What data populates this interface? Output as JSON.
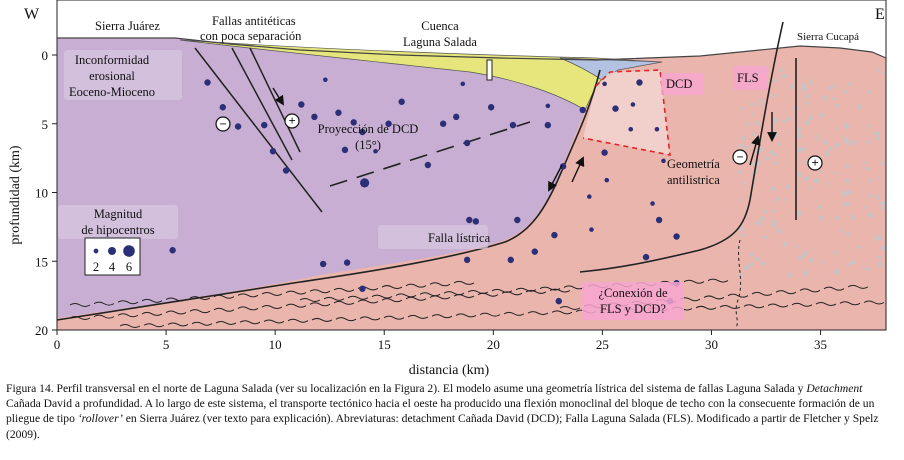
{
  "figure": {
    "compass_west": "W",
    "compass_east": "E",
    "labels": {
      "sierra_juarez": "Sierra Juárez",
      "fallas_line1": "Fallas antitéticas",
      "fallas_line2": "con poca separación",
      "cuenca_line1": "Cuenca",
      "cuenca_line2": "Laguna Salada",
      "sierra_cucapa": "Sierra Cucapá",
      "inconf_line1": "Inconformidad",
      "inconf_line2": "erosional",
      "inconf_line3": "Eoceno-Mioceno",
      "proyeccion_line1": "Proyección de DCD",
      "proyeccion_line2": "(15°)",
      "dcd": "DCD",
      "fls": "FLS",
      "geometria_line1": "Geometría",
      "geometria_line2": "antilistrica",
      "falla_listrica": "Falla lístrica",
      "magnitud_line1": "Magnitud",
      "magnitud_line2": "de hipocentros",
      "mag_2": "2",
      "mag_4": "4",
      "mag_6": "6",
      "conexion_line1": "¿Conexión de",
      "conexion_line2": "FLS y DCD?",
      "motion_minus": "−",
      "motion_plus": "+"
    },
    "axes": {
      "x_title": "distancia (km)",
      "y_title": "profundidad (km)",
      "x_ticks": [
        "0",
        "5",
        "10",
        "15",
        "20",
        "25",
        "30",
        "35"
      ],
      "y_ticks": [
        "0",
        "5",
        "10",
        "15",
        "20"
      ],
      "x_range_km": [
        0,
        38
      ],
      "y_range_km": [
        -4,
        20
      ]
    },
    "colors": {
      "hanging_wall": "#c8aed2",
      "footwall": "#eab5ad",
      "basin_fill": "#e6e67c",
      "basin_inner": "#b2c2e0",
      "earthquakes": "#2b2f78",
      "dcd_dashes": "#e3242b",
      "label_highlight": "#f7a6cf"
    },
    "hypocenters": [
      {
        "x": 6.9,
        "y": 2.0,
        "m": 4
      },
      {
        "x": 7.6,
        "y": 3.8,
        "m": 4
      },
      {
        "x": 8.3,
        "y": 5.2,
        "m": 4
      },
      {
        "x": 9.5,
        "y": 5.1,
        "m": 4
      },
      {
        "x": 9.9,
        "y": 7.0,
        "m": 4
      },
      {
        "x": 10.5,
        "y": 8.4,
        "m": 4
      },
      {
        "x": 11.2,
        "y": 3.6,
        "m": 4
      },
      {
        "x": 11.8,
        "y": 4.5,
        "m": 4
      },
      {
        "x": 12.3,
        "y": 1.8,
        "m": 2
      },
      {
        "x": 12.9,
        "y": 4.2,
        "m": 4
      },
      {
        "x": 13.6,
        "y": 4.9,
        "m": 4
      },
      {
        "x": 13.2,
        "y": 6.9,
        "m": 4
      },
      {
        "x": 14.0,
        "y": 5.6,
        "m": 4
      },
      {
        "x": 14.1,
        "y": 9.3,
        "m": 6
      },
      {
        "x": 14.6,
        "y": 7.0,
        "m": 2
      },
      {
        "x": 15.2,
        "y": 5.0,
        "m": 4
      },
      {
        "x": 15.8,
        "y": 3.4,
        "m": 4
      },
      {
        "x": 17.0,
        "y": 8.0,
        "m": 4
      },
      {
        "x": 17.7,
        "y": 5.0,
        "m": 4
      },
      {
        "x": 18.3,
        "y": 4.5,
        "m": 4
      },
      {
        "x": 18.6,
        "y": 2.1,
        "m": 2
      },
      {
        "x": 18.8,
        "y": 6.4,
        "m": 4
      },
      {
        "x": 18.9,
        "y": 12.0,
        "m": 4
      },
      {
        "x": 19.2,
        "y": 12.1,
        "m": 4
      },
      {
        "x": 18.8,
        "y": 14.9,
        "m": 4
      },
      {
        "x": 19.9,
        "y": 3.8,
        "m": 4
      },
      {
        "x": 20.9,
        "y": 5.1,
        "m": 4
      },
      {
        "x": 20.8,
        "y": 14.9,
        "m": 4
      },
      {
        "x": 21.1,
        "y": 12.0,
        "m": 4
      },
      {
        "x": 21.9,
        "y": 14.3,
        "m": 4
      },
      {
        "x": 22.5,
        "y": 3.7,
        "m": 2
      },
      {
        "x": 22.5,
        "y": 5.1,
        "m": 4
      },
      {
        "x": 22.8,
        "y": 13.1,
        "m": 4
      },
      {
        "x": 23.2,
        "y": 8.1,
        "m": 4
      },
      {
        "x": 23.0,
        "y": 17.9,
        "m": 4
      },
      {
        "x": 24.1,
        "y": 4.0,
        "m": 4
      },
      {
        "x": 24.4,
        "y": 10.3,
        "m": 2
      },
      {
        "x": 24.5,
        "y": 12.7,
        "m": 2
      },
      {
        "x": 25.1,
        "y": 2.1,
        "m": 2
      },
      {
        "x": 25.1,
        "y": 7.1,
        "m": 4
      },
      {
        "x": 25.2,
        "y": 9.1,
        "m": 2
      },
      {
        "x": 25.6,
        "y": 3.9,
        "m": 4
      },
      {
        "x": 26.3,
        "y": 5.4,
        "m": 2
      },
      {
        "x": 26.4,
        "y": 3.6,
        "m": 2
      },
      {
        "x": 26.7,
        "y": 2.0,
        "m": 4
      },
      {
        "x": 27.0,
        "y": 14.7,
        "m": 4
      },
      {
        "x": 27.3,
        "y": 10.8,
        "m": 2
      },
      {
        "x": 27.5,
        "y": 5.4,
        "m": 2
      },
      {
        "x": 27.6,
        "y": 12.0,
        "m": 4
      },
      {
        "x": 27.8,
        "y": 7.7,
        "m": 2
      },
      {
        "x": 28.1,
        "y": 17.9,
        "m": 4
      },
      {
        "x": 28.4,
        "y": 13.2,
        "m": 4
      },
      {
        "x": 28.4,
        "y": 16.6,
        "m": 4
      },
      {
        "x": 5.3,
        "y": 14.2,
        "m": 4
      },
      {
        "x": 12.2,
        "y": 15.2,
        "m": 4
      },
      {
        "x": 13.3,
        "y": 15.1,
        "m": 4
      },
      {
        "x": 14.0,
        "y": 17.0,
        "m": 4
      }
    ]
  },
  "caption": {
    "p1": "Figura 14. Perfil transversal en el norte de Laguna Salada (ver su localización en la Figura 2). El modelo asume una geometría lístrica del sistema de fallas Laguna Salada y ",
    "detachment": "Detachment",
    "p2": " Cañada David a profundidad. A lo largo de este sistema, el transporte tectónico hacia el oeste ha producido una flexión monoclinal del bloque de techo con la consecuente formación de un pliegue de tipo ",
    "rollover": "‘rollover’",
    "p3": " en Sierra Juárez (ver texto para explicación). Abreviaturas: detachment Cañada David (DCD); Falla Laguna Salada (FLS). Modificado a partir de Fletcher y Spelz (2009)."
  }
}
